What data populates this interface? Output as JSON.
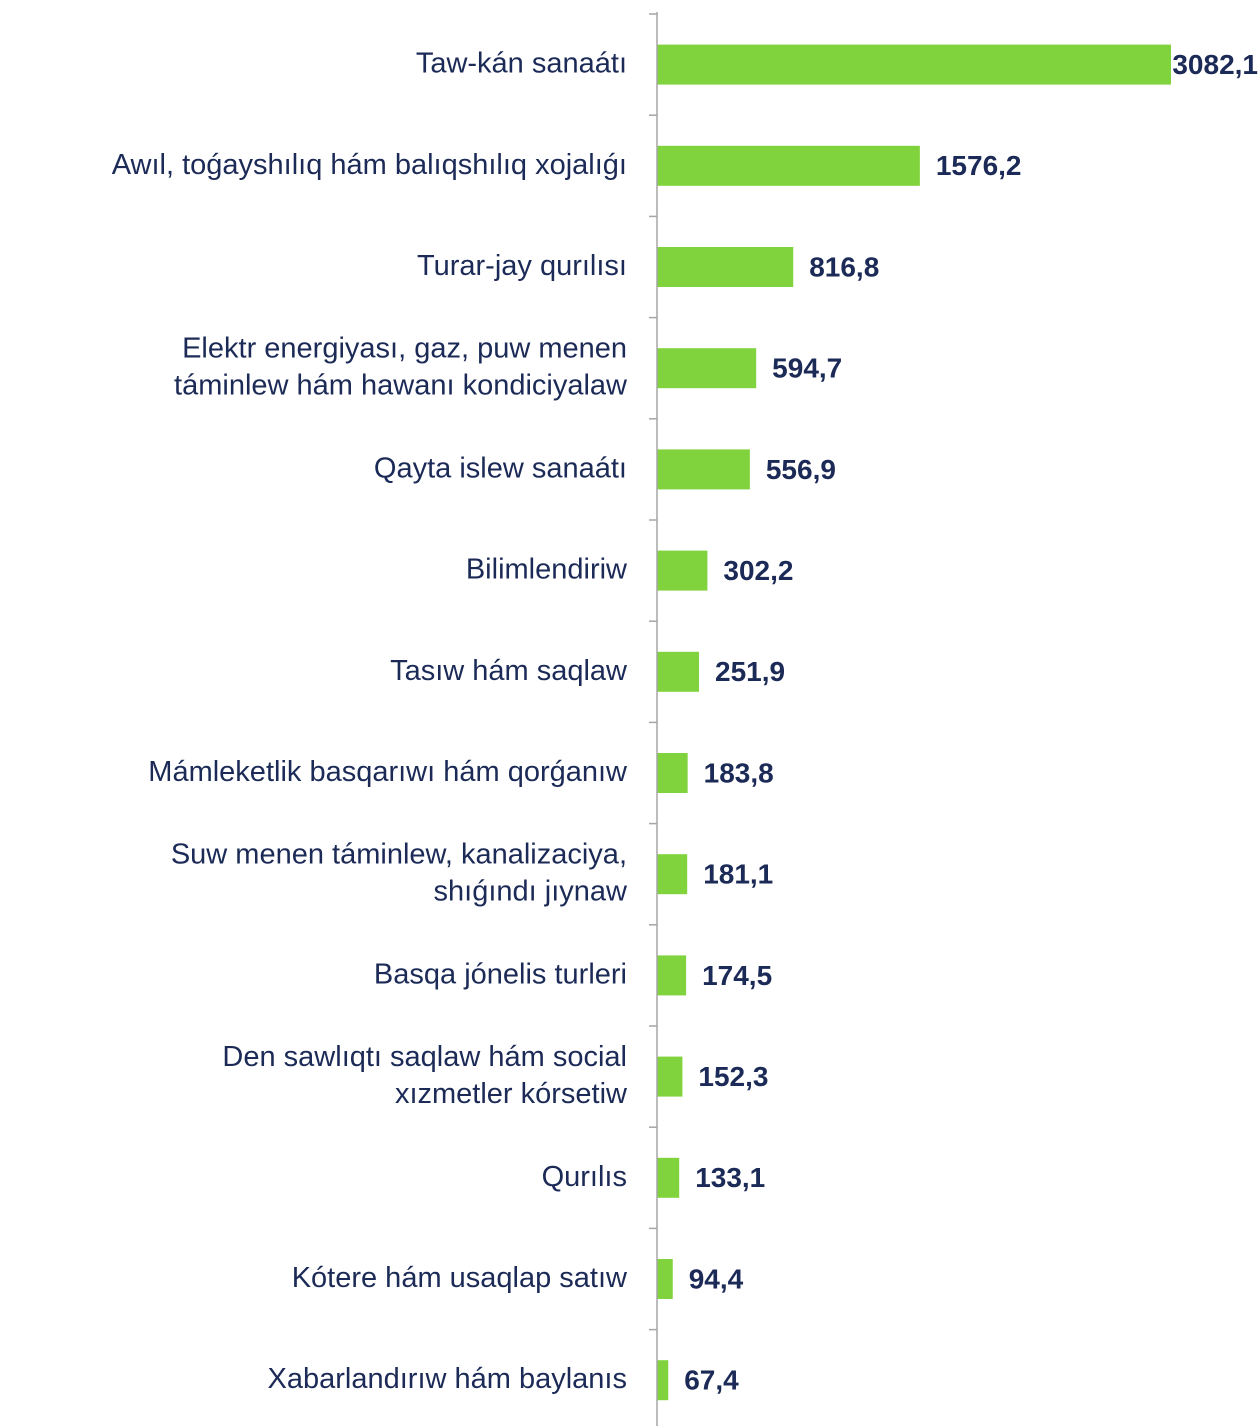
{
  "chart_data": {
    "type": "barh",
    "categories": [
      "Taw-kán sanaátı",
      "Awıl, toǵayshılıq hám balıqshılıq xojalıǵı",
      "Turar-jay qurılısı",
      "Elektr energiyası, gaz, puw menen\ntáminlew hám hawanı kondiciyalaw",
      "Qayta islew sanaátı",
      "Bilimlendiriw",
      "Tasıw hám  saqlaw",
      "Mámleketlik basqarıwı hám  qorǵanıw",
      "Suw menen táminlew, kanalizaciya,\nshıǵındı jıynaw",
      "Basqa  jónelis turleri",
      "Den sawlıqtı saqlaw hám social\nxızmetler  kórsetiw",
      "Qurılıs",
      "Kótere hám usaqlap satıw",
      "Xabarlandırıw  hám baylanıs"
    ],
    "values": [
      3082.1,
      1576.2,
      816.8,
      594.7,
      556.9,
      302.2,
      251.9,
      183.8,
      181.1,
      174.5,
      152.3,
      133.1,
      94.4,
      67.4
    ],
    "value_labels": [
      "3082,1",
      "1576,2",
      "816,8",
      "594,7",
      "556,9",
      "302,2",
      "251,9",
      "183,8",
      "181,1",
      "174,5",
      "152,3",
      "133,1",
      "94,4",
      "67,4"
    ],
    "color": "#80d33c"
  }
}
